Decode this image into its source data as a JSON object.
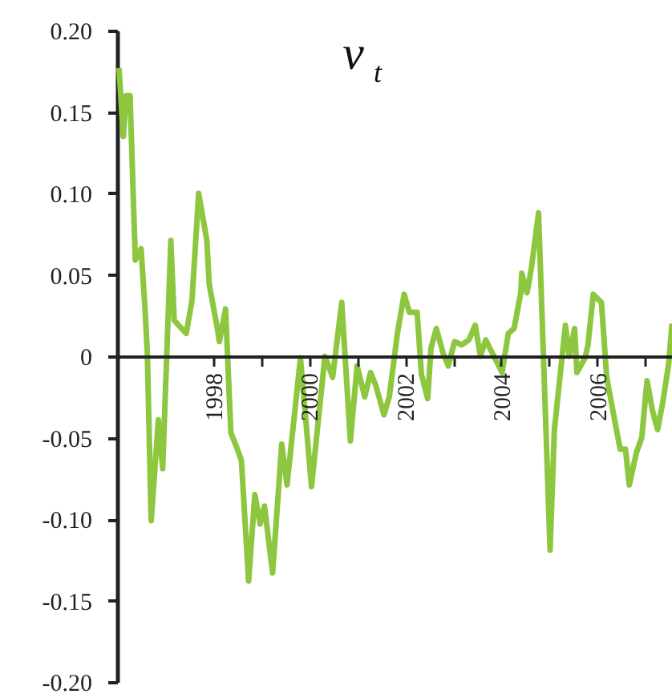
{
  "chart_data": {
    "type": "line",
    "title": "v$_{t}$",
    "x": [
      1996.04,
      1996.13,
      1996.19,
      1996.27,
      1996.38,
      1996.5,
      1996.58,
      1996.63,
      1996.71,
      1996.86,
      1996.95,
      1997.12,
      1997.19,
      1997.44,
      1997.56,
      1997.7,
      1997.87,
      1997.92,
      1998.09,
      1998.13,
      1998.26,
      1998.37,
      1998.48,
      1998.59,
      1998.74,
      1998.87,
      1998.98,
      1999.07,
      1999.24,
      1999.43,
      1999.54,
      1999.82,
      2000.05,
      2000.33,
      2000.49,
      2000.68,
      2000.86,
      2001.0,
      2001.16,
      2001.28,
      2001.39,
      2001.56,
      2001.67,
      2001.84,
      2001.98,
      2002.09,
      2002.25,
      2002.34,
      2002.47,
      2002.54,
      2002.65,
      2002.79,
      2002.9,
      2003.03,
      2003.18,
      2003.33,
      2003.46,
      2003.57,
      2003.68,
      2003.85,
      2004.02,
      2004.15,
      2004.27,
      2004.41,
      2004.43,
      2004.54,
      2004.63,
      2004.78,
      2005.02,
      2005.11,
      2005.34,
      2005.42,
      2005.53,
      2005.58,
      2005.75,
      2005.81,
      2005.92,
      2006.09,
      2006.2,
      2006.37,
      2006.48,
      2006.59,
      2006.67,
      2006.82,
      2006.93,
      2007.04,
      2007.15,
      2007.26,
      2007.37,
      2007.49,
      2007.56
    ],
    "series": [
      {
        "color": "#8dc63f",
        "values": [
          0.177,
          0.135,
          0.16,
          0.16,
          0.059,
          0.066,
          0.03,
          0.002,
          -0.101,
          -0.039,
          -0.069,
          0.071,
          0.022,
          0.014,
          0.034,
          0.1,
          0.071,
          0.044,
          0.017,
          0.009,
          0.029,
          -0.047,
          -0.055,
          -0.064,
          -0.138,
          -0.085,
          -0.103,
          -0.092,
          -0.133,
          -0.054,
          -0.079,
          -0.001,
          -0.08,
          0,
          -0.013,
          0.033,
          -0.052,
          -0.006,
          -0.025,
          -0.01,
          -0.018,
          -0.036,
          -0.025,
          0.014,
          0.038,
          0.027,
          0.027,
          -0.011,
          -0.026,
          0.005,
          0.017,
          0.002,
          -0.006,
          0.009,
          0.007,
          0.01,
          0.019,
          0,
          0.01,
          0,
          -0.01,
          0.014,
          0.017,
          0.039,
          0.051,
          0.039,
          0.054,
          0.088,
          -0.119,
          -0.045,
          0.019,
          0,
          0.017,
          -0.01,
          -0.001,
          0.007,
          0.038,
          0.033,
          -0.013,
          -0.04,
          -0.057,
          -0.057,
          -0.079,
          -0.059,
          -0.05,
          -0.015,
          -0.033,
          -0.045,
          -0.028,
          -0.005,
          0.02
        ]
      }
    ],
    "xlim": [
      1996,
      2007.56
    ],
    "xticks": [
      1998,
      {
        "value": 1999,
        "label": null
      },
      2000,
      {
        "value": 2001,
        "label": null
      },
      2002,
      {
        "value": 2003,
        "label": null
      },
      2004,
      {
        "value": 2005,
        "label": null
      },
      2006,
      {
        "value": 2007,
        "label": null
      }
    ],
    "ylim": [
      -0.2,
      0.2
    ],
    "yticks": [
      {
        "value": 0.2,
        "label": "0.20"
      },
      {
        "value": 0.15,
        "label": "0.15"
      },
      {
        "value": 0.1,
        "label": "0.10"
      },
      {
        "value": 0.05,
        "label": "0.05"
      },
      {
        "value": 0,
        "label": "0"
      },
      {
        "value": -0.05,
        "label": "-0.05"
      },
      {
        "value": -0.1,
        "label": "-0.10"
      },
      {
        "value": -0.15,
        "label": "-0.15"
      },
      {
        "value": -0.2,
        "label": "-0.20"
      }
    ],
    "grid": false,
    "marker": "none",
    "line_style": "solid"
  }
}
